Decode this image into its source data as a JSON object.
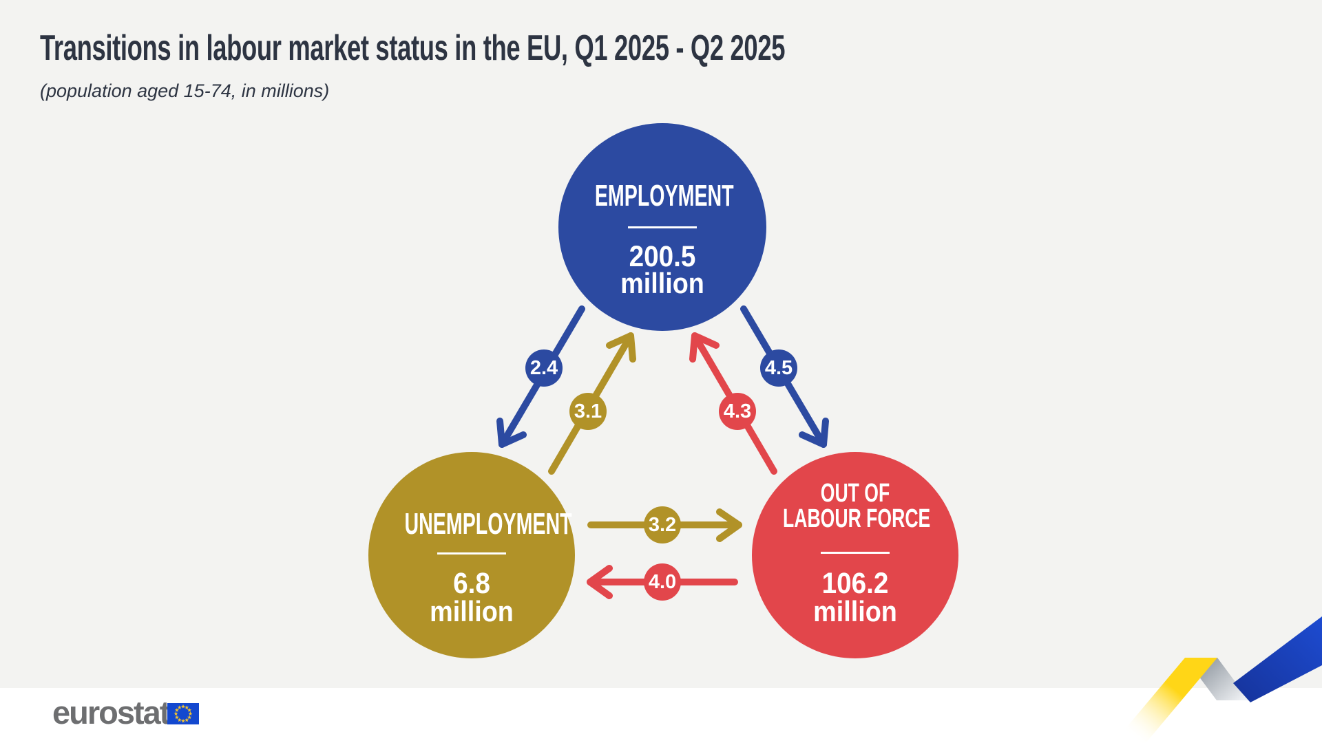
{
  "title": "Transitions in labour market status in the EU, Q1 2025 - Q2 2025",
  "subtitle": "(population aged 15-74, in millions)",
  "nodes": {
    "employment": {
      "label": "EMPLOYMENT",
      "value": "200.5",
      "unit": "million",
      "color": "#2c4aa1"
    },
    "unemployment": {
      "label": "UNEMPLOYMENT",
      "value": "6.8",
      "unit": "million",
      "color": "#b19228"
    },
    "out_of_labour_force": {
      "label_line1": "OUT OF",
      "label_line2": "LABOUR FORCE",
      "value": "106.2",
      "unit": "million",
      "color": "#e2464b"
    }
  },
  "flows": {
    "employment_to_unemployment": {
      "value": "2.4",
      "color": "#2c4aa1"
    },
    "unemployment_to_employment": {
      "value": "3.1",
      "color": "#b19228"
    },
    "employment_to_out_of_labour_force": {
      "value": "4.5",
      "color": "#2c4aa1"
    },
    "out_of_labour_force_to_employment": {
      "value": "4.3",
      "color": "#e2464b"
    },
    "unemployment_to_out_of_labour_force": {
      "value": "3.2",
      "color": "#b19228"
    },
    "out_of_labour_force_to_unemployment": {
      "value": "4.0",
      "color": "#e2464b"
    }
  },
  "footer": {
    "logo_text": "eurostat"
  },
  "colors": {
    "background": "#f3f3f1",
    "footer_background": "#ffffff",
    "employment_blue": "#2c4aa1",
    "unemployment_gold": "#b19228",
    "out_of_labour_force_red": "#e2464b",
    "title_text": "#2d3442",
    "logo_gray": "#6d6e70",
    "eu_flag_blue": "#1348cf",
    "eu_flag_stars": "#f8c62c",
    "ribbon_yellow": "#ffd617",
    "ribbon_silver": "#9aa1ab",
    "ribbon_blue": "#1b4ac9"
  },
  "chart_data": {
    "type": "flow",
    "title": "Transitions in labour market status in the EU, Q1 2025 - Q2 2025",
    "subtitle": "(population aged 15-74, in millions)",
    "nodes": [
      {
        "id": "employment",
        "label": "EMPLOYMENT",
        "value_millions": 200.5
      },
      {
        "id": "unemployment",
        "label": "UNEMPLOYMENT",
        "value_millions": 6.8
      },
      {
        "id": "out_of_labour_force",
        "label": "OUT OF LABOUR FORCE",
        "value_millions": 106.2
      }
    ],
    "flows": [
      {
        "from": "employment",
        "to": "unemployment",
        "value_millions": 2.4
      },
      {
        "from": "unemployment",
        "to": "employment",
        "value_millions": 3.1
      },
      {
        "from": "employment",
        "to": "out_of_labour_force",
        "value_millions": 4.5
      },
      {
        "from": "out_of_labour_force",
        "to": "employment",
        "value_millions": 4.3
      },
      {
        "from": "unemployment",
        "to": "out_of_labour_force",
        "value_millions": 3.2
      },
      {
        "from": "out_of_labour_force",
        "to": "unemployment",
        "value_millions": 4.0
      }
    ]
  }
}
